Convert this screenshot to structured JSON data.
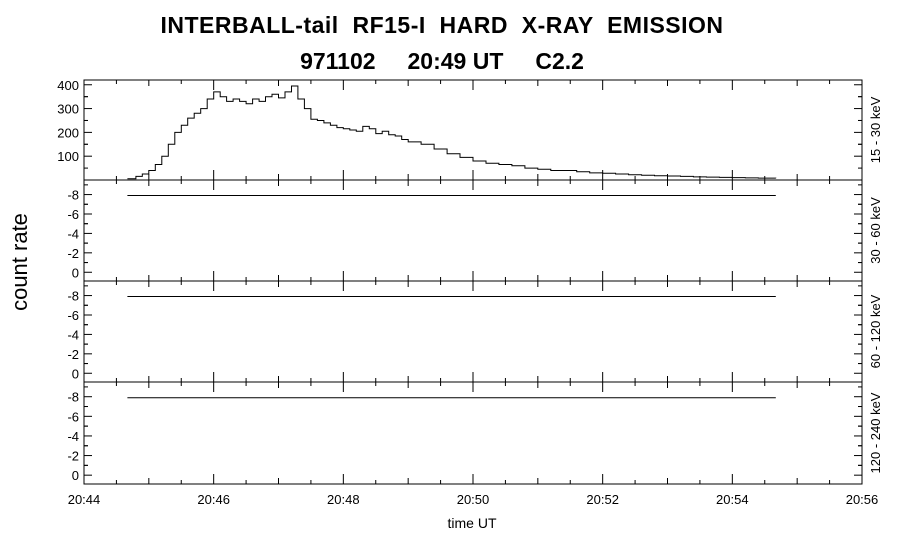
{
  "title": {
    "line1": "INTERBALL-tail  RF15-I  HARD  X-RAY  EMISSION",
    "line2": "971102     20:49 UT     C2.2"
  },
  "chart_data": [
    {
      "type": "line",
      "panel": 1,
      "band_label": "15 - 30 keV",
      "ylim": [
        0,
        420
      ],
      "yticks": [
        100,
        200,
        300,
        400
      ],
      "ytick_labels": [
        "100",
        "200",
        "300",
        "400"
      ],
      "xlim_minutes": [
        0,
        12
      ],
      "series": [
        {
          "x_minutes": [
            0.67,
            0.8,
            0.9,
            1.0,
            1.1,
            1.2,
            1.3,
            1.4,
            1.5,
            1.6,
            1.7,
            1.8,
            1.9,
            2.0,
            2.1,
            2.2,
            2.3,
            2.4,
            2.5,
            2.6,
            2.7,
            2.8,
            2.9,
            3.0,
            3.1,
            3.2,
            3.3,
            3.4,
            3.5,
            3.6,
            3.7,
            3.8,
            3.9,
            4.0,
            4.1,
            4.2,
            4.3,
            4.4,
            4.5,
            4.6,
            4.7,
            4.8,
            4.9,
            5.0,
            5.2,
            5.4,
            5.6,
            5.8,
            6.0,
            6.2,
            6.4,
            6.6,
            6.8,
            7.0,
            7.2,
            7.4,
            7.6,
            7.8,
            8.0,
            8.2,
            8.4,
            8.6,
            8.8,
            9.0,
            9.2,
            9.4,
            9.6,
            9.8,
            10.0,
            10.2,
            10.4,
            10.67
          ],
          "values": [
            5,
            15,
            25,
            40,
            65,
            100,
            150,
            200,
            230,
            260,
            280,
            300,
            340,
            370,
            350,
            330,
            340,
            330,
            320,
            340,
            330,
            350,
            360,
            345,
            370,
            395,
            340,
            300,
            255,
            250,
            240,
            230,
            220,
            215,
            210,
            205,
            225,
            215,
            195,
            205,
            190,
            185,
            170,
            160,
            150,
            130,
            110,
            95,
            80,
            70,
            65,
            60,
            50,
            45,
            40,
            40,
            35,
            30,
            28,
            25,
            22,
            20,
            18,
            17,
            15,
            13,
            12,
            11,
            10,
            9,
            8,
            7
          ]
        }
      ]
    },
    {
      "type": "line",
      "panel": 2,
      "band_label": "30 - 60 keV",
      "ylim": [
        0.9,
        -9.5
      ],
      "yticks": [
        -8,
        -6,
        -4,
        -2,
        0
      ],
      "ytick_labels": [
        "-8",
        "-6",
        "-4",
        "-2",
        "0"
      ],
      "xlim_minutes": [
        0,
        12
      ],
      "series": [
        {
          "x_minutes": [
            0.67,
            10.67
          ],
          "values": [
            -7.9,
            -7.9
          ]
        }
      ]
    },
    {
      "type": "line",
      "panel": 3,
      "band_label": "60 - 120 keV",
      "ylim": [
        0.9,
        -9.5
      ],
      "yticks": [
        -8,
        -6,
        -4,
        -2,
        0
      ],
      "ytick_labels": [
        "-8",
        "-6",
        "-4",
        "-2",
        "0"
      ],
      "xlim_minutes": [
        0,
        12
      ],
      "series": [
        {
          "x_minutes": [
            0.67,
            10.67
          ],
          "values": [
            -7.9,
            -7.9
          ]
        }
      ]
    },
    {
      "type": "line",
      "panel": 4,
      "band_label": "120 - 240 keV",
      "ylim": [
        0.9,
        -9.5
      ],
      "yticks": [
        -8,
        -6,
        -4,
        -2,
        0
      ],
      "ytick_labels": [
        "-8",
        "-6",
        "-4",
        "-2",
        "0"
      ],
      "xlim_minutes": [
        0,
        12
      ],
      "series": [
        {
          "x_minutes": [
            0.67,
            10.67
          ],
          "values": [
            -7.9,
            -7.9
          ]
        }
      ]
    }
  ],
  "axes": {
    "ylabel": "count rate",
    "xlabel": "time UT",
    "xtick_labels": [
      "20:44",
      "20:46",
      "20:48",
      "20:50",
      "20:52",
      "20:54",
      "20:56"
    ],
    "xtick_minutes": [
      0,
      2,
      4,
      6,
      8,
      10,
      12
    ]
  }
}
